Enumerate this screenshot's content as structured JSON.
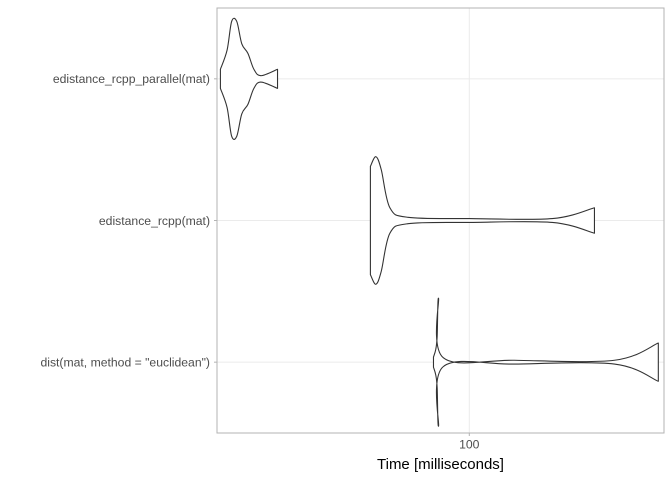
{
  "chart_data": {
    "type": "violin",
    "orientation": "horizontal",
    "xlabel": "Time [milliseconds]",
    "x_scale": "log10",
    "xlim": [
      36,
      220
    ],
    "x_ticks": [
      100
    ],
    "x_tick_labels": [
      "100"
    ],
    "grid": true,
    "legend": "none",
    "categories": [
      "edistance_rcpp_parallel(mat)",
      "edistance_rcpp(mat)",
      "dist(mat, method = \"euclidean\")"
    ],
    "series": [
      {
        "category": "edistance_rcpp_parallel(mat)",
        "min": 36.5,
        "max": 46.0,
        "density": [
          [
            36.5,
            0.15
          ],
          [
            37.5,
            0.45
          ],
          [
            38.2,
            0.9
          ],
          [
            39.0,
            0.9
          ],
          [
            39.8,
            0.55
          ],
          [
            40.8,
            0.4
          ],
          [
            41.8,
            0.15
          ],
          [
            43.0,
            0.05
          ],
          [
            46.0,
            0.15
          ]
        ]
      },
      {
        "category": "edistance_rcpp(mat)",
        "min": 67.0,
        "max": 166.0,
        "density": [
          [
            67.0,
            0.85
          ],
          [
            68.5,
            1.0
          ],
          [
            70.0,
            0.8
          ],
          [
            72.5,
            0.2
          ],
          [
            78.0,
            0.05
          ],
          [
            100,
            0.03
          ],
          [
            140,
            0.03
          ],
          [
            166.0,
            0.2
          ]
        ]
      },
      {
        "category": "dist(mat, method = \"euclidean\")",
        "min": 86.5,
        "max": 215.0,
        "density": [
          [
            86.5,
            0.08
          ],
          [
            87.3,
            0.2
          ],
          [
            87.8,
            0.4
          ],
          [
            88.3,
            1.0
          ],
          [
            90.0,
            0.07
          ],
          [
            120,
            0.03
          ],
          [
            180,
            0.03
          ],
          [
            215.0,
            0.3
          ]
        ]
      }
    ]
  }
}
